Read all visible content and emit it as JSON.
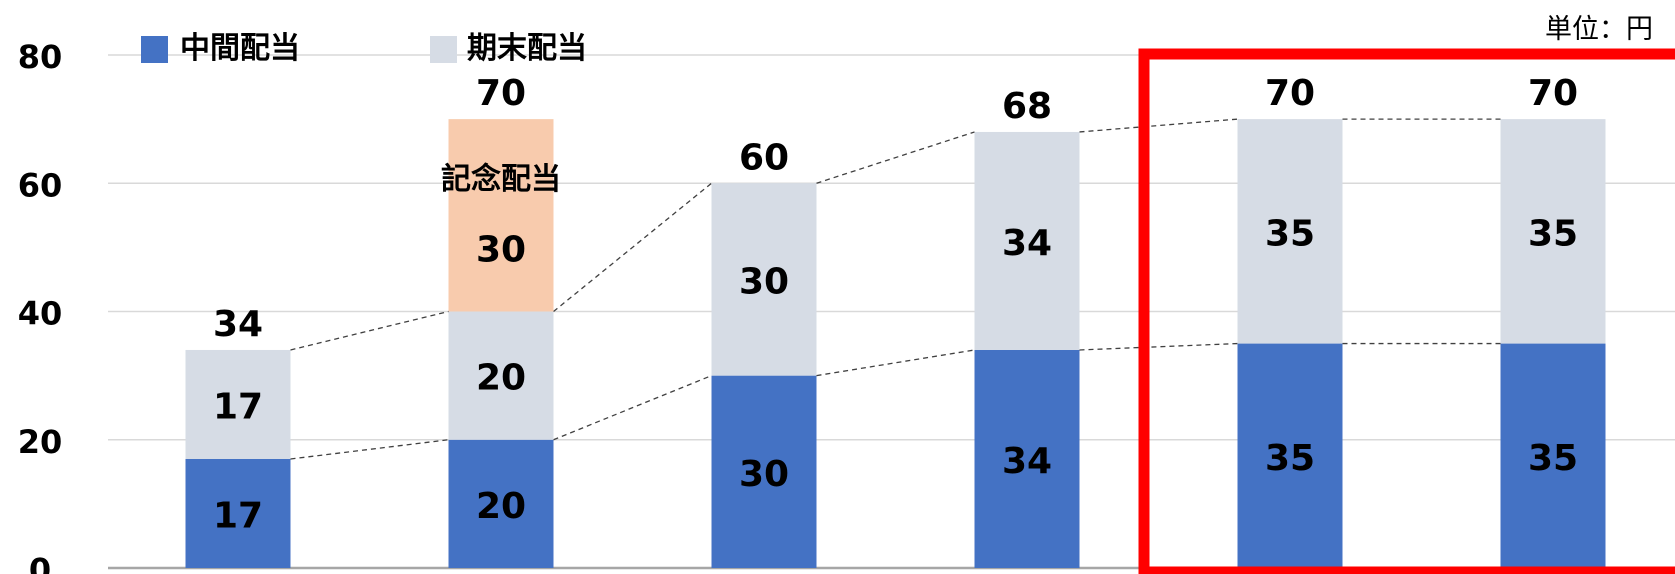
{
  "unit_label": "単位：円",
  "legend": [
    {
      "label": "中間配当",
      "color": "#4472C4"
    },
    {
      "label": "期末配当",
      "color": "#D6DCE5"
    }
  ],
  "colors": {
    "interim": "#4472C4",
    "final": "#D6DCE5",
    "commemorative": "#F8CBAD",
    "highlight_box": "#FF0000",
    "gridline": "#D9D9D9",
    "axis": "#A6A6A6",
    "connector": "#404040"
  },
  "chart_data": {
    "type": "bar",
    "stacked": true,
    "ylim": [
      0,
      80
    ],
    "yticks": [
      0,
      20,
      40,
      60,
      80
    ],
    "grid": true,
    "legend_position": "top-left",
    "categories": [
      "",
      "",
      "",
      "",
      "",
      ""
    ],
    "series": [
      {
        "name": "中間配当",
        "values": [
          17,
          20,
          30,
          34,
          35,
          35
        ]
      },
      {
        "name": "期末配当",
        "values": [
          17,
          20,
          30,
          34,
          35,
          35
        ]
      },
      {
        "name": "記念配当",
        "values": [
          0,
          30,
          0,
          0,
          0,
          0
        ]
      }
    ],
    "totals": [
      34,
      70,
      60,
      68,
      70,
      70
    ],
    "annotations": [
      {
        "bar_index": 1,
        "text": "記念配当"
      }
    ],
    "highlighted_bars": [
      4,
      5
    ]
  }
}
